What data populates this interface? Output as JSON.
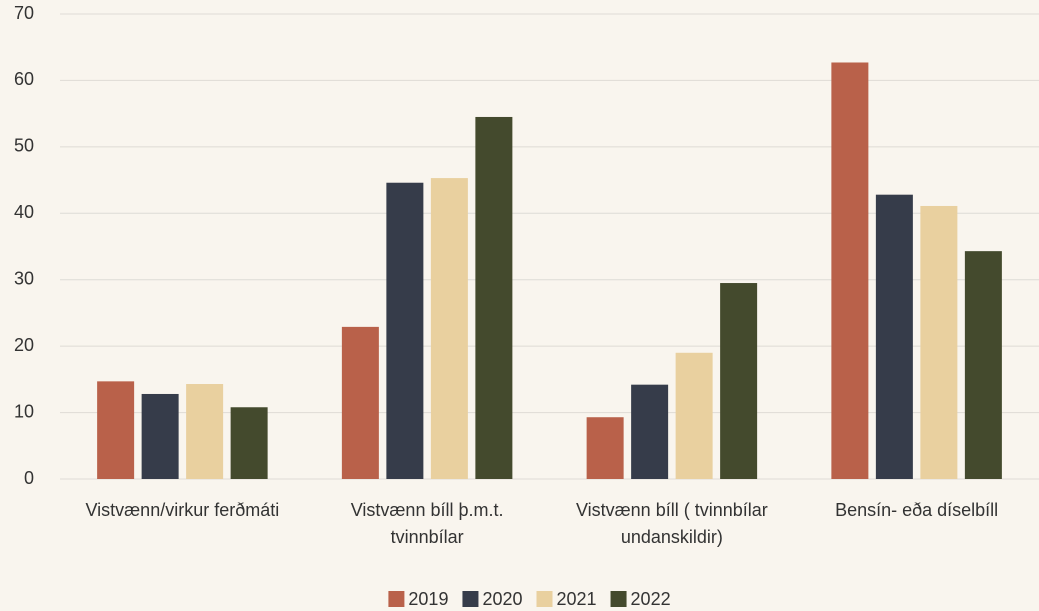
{
  "chart_data": {
    "type": "bar",
    "categories": [
      "Vistvænn/virkur ferðmáti",
      "Vistvænn bíll þ.m.t. tvinnbílar",
      "Vistvænn bíll ( tvinnbílar undanskildir)",
      "Bensín- eða díselbíll"
    ],
    "series": [
      {
        "name": "2019",
        "color": "#b9614a",
        "values": [
          14.7,
          22.9,
          9.3,
          62.7
        ]
      },
      {
        "name": "2020",
        "color": "#363c4a",
        "values": [
          12.8,
          44.6,
          14.2,
          42.8
        ]
      },
      {
        "name": "2021",
        "color": "#e9d09f",
        "values": [
          14.3,
          45.3,
          19.0,
          41.1
        ]
      },
      {
        "name": "2022",
        "color": "#444a2d",
        "values": [
          10.8,
          54.5,
          29.5,
          34.3
        ]
      }
    ],
    "ylim": [
      0,
      70
    ],
    "yticks": [
      0,
      10,
      20,
      30,
      40,
      50,
      60,
      70
    ],
    "grid": true,
    "legend": "bottom"
  }
}
